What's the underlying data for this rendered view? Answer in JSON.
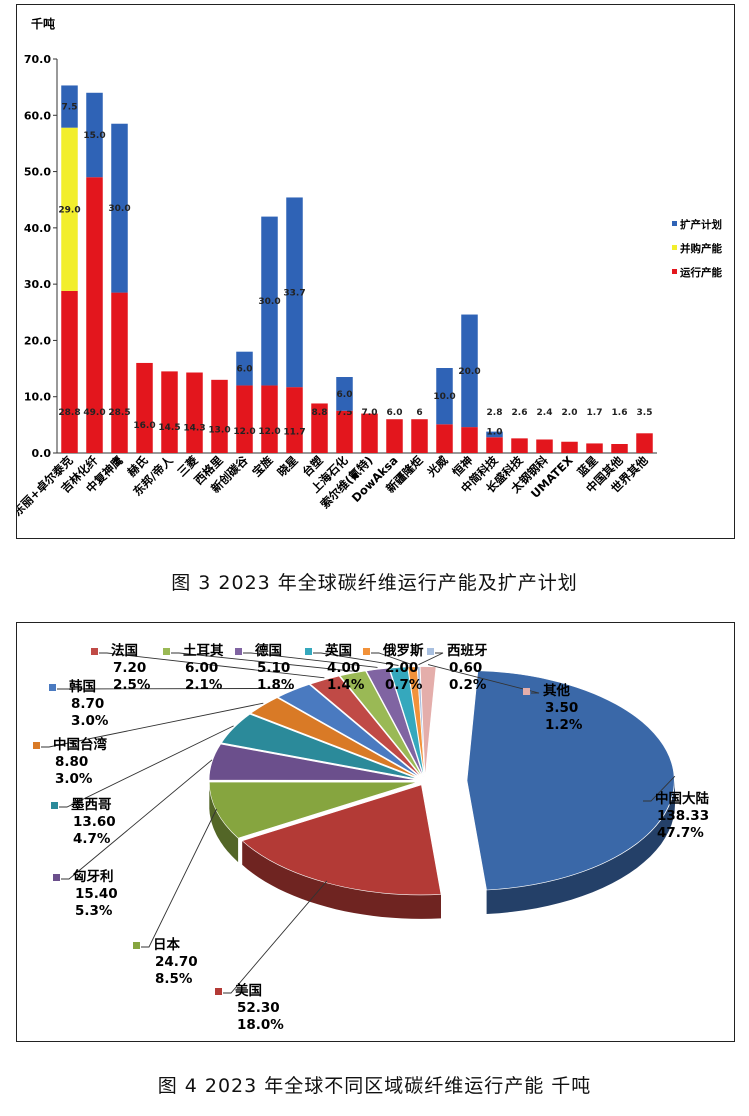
{
  "captions": {
    "fig3": "图 3  2023 年全球碳纤维运行产能及扩产计划",
    "fig4": "图 4  2023 年全球不同区域碳纤维运行产能  千吨"
  },
  "colors": {
    "operating": "#e3161d",
    "acquired": "#f2ee2c",
    "expansion": "#2f63b6"
  },
  "chart_data": [
    {
      "type": "bar",
      "stacked": true,
      "unit": "千吨",
      "ylim": [
        0,
        70
      ],
      "yticks": [
        "0.0",
        "10.0",
        "20.0",
        "30.0",
        "40.0",
        "50.0",
        "60.0",
        "70.0"
      ],
      "grid": false,
      "legend_position": "right",
      "categories": [
        "东丽+卓尔泰克",
        "吉林化纤",
        "中复神鹰",
        "赫氏",
        "东邦/帝人",
        "三菱",
        "西格里",
        "新创碳谷",
        "宝旌",
        "晓星",
        "台塑",
        "上海石化",
        "索尔维(氰特)",
        "DowAksa",
        "新疆隆炬",
        "光威",
        "恒神",
        "中简科技",
        "长盛科技",
        "太钢钢科",
        "UMATEX",
        "蓝星",
        "中国其他",
        "世界其他"
      ],
      "series": [
        {
          "name": "运行产能",
          "color": "#e3161d",
          "values": [
            28.8,
            49.0,
            28.5,
            16.0,
            14.5,
            14.3,
            13.0,
            12.0,
            12.0,
            11.7,
            8.8,
            7.5,
            7.0,
            6.0,
            6,
            5.1,
            4.6,
            2.8,
            2.6,
            2.4,
            2.0,
            1.7,
            1.6,
            3.5
          ],
          "labels": [
            "28.8",
            "49.0",
            "28.5",
            "16.0",
            "14.5",
            "14.3",
            "13.0",
            "12.0",
            "12.0",
            "11.7",
            "8.8",
            "7.5",
            "7.0",
            "6.0",
            "6",
            "5.1",
            "4.6",
            "2.8",
            "2.6",
            "2.4",
            "2.0",
            "1.7",
            "1.6",
            "3.5"
          ]
        },
        {
          "name": "并购产能",
          "color": "#f2ee2c",
          "values": [
            29.0,
            0,
            0,
            0,
            0,
            0,
            0,
            0,
            0,
            0,
            0,
            0,
            0,
            0,
            0,
            0,
            0,
            0,
            0,
            0,
            0,
            0,
            0,
            0
          ],
          "labels": [
            "29.0",
            "",
            "",
            "",
            "",
            "",
            "",
            "",
            "",
            "",
            "",
            "",
            "",
            "",
            "",
            "",
            "",
            "",
            "",
            "",
            "",
            "",
            "",
            ""
          ]
        },
        {
          "name": "扩产计划",
          "color": "#2f63b6",
          "values": [
            7.5,
            15.0,
            30.0,
            0,
            0,
            0,
            0,
            6.0,
            30.0,
            33.7,
            0,
            6.0,
            0,
            0,
            0,
            10.0,
            20.0,
            1.0,
            0,
            0,
            0,
            0,
            0,
            0
          ],
          "labels": [
            "7.5",
            "15.0",
            "30.0",
            "",
            "",
            "",
            "",
            "6.0",
            "30.0",
            "33.7",
            "",
            "6.0",
            "",
            "",
            "",
            "10.0",
            "20.0",
            "1.0",
            "",
            "",
            "",
            "",
            "",
            ""
          ]
        }
      ]
    },
    {
      "type": "pie",
      "three_d": true,
      "slices": [
        {
          "label": "中国大陆",
          "value": 138.33,
          "value_text": "138.33",
          "pct": "47.7%",
          "color": "#3a68a8"
        },
        {
          "label": "美国",
          "value": 52.3,
          "value_text": "52.30",
          "pct": "18.0%",
          "color": "#b33a36"
        },
        {
          "label": "日本",
          "value": 24.7,
          "value_text": "24.70",
          "pct": "8.5%",
          "color": "#86a53f"
        },
        {
          "label": "匈牙利",
          "value": 15.4,
          "value_text": "15.40",
          "pct": "5.3%",
          "color": "#6b4f8c"
        },
        {
          "label": "墨西哥",
          "value": 13.6,
          "value_text": "13.60",
          "pct": "4.7%",
          "color": "#2b8a9a"
        },
        {
          "label": "中国台湾",
          "value": 8.8,
          "value_text": "8.80",
          "pct": "3.0%",
          "color": "#d97a26"
        },
        {
          "label": "韩国",
          "value": 8.7,
          "value_text": "8.70",
          "pct": "3.0%",
          "color": "#4a7ac0"
        },
        {
          "label": "法国",
          "value": 7.2,
          "value_text": "7.20",
          "pct": "2.5%",
          "color": "#c04a46"
        },
        {
          "label": "土耳其",
          "value": 6.0,
          "value_text": "6.00",
          "pct": "2.1%",
          "color": "#9ab955"
        },
        {
          "label": "德国",
          "value": 5.1,
          "value_text": "5.10",
          "pct": "1.8%",
          "color": "#8064a2"
        },
        {
          "label": "英国",
          "value": 4.0,
          "value_text": "4.00",
          "pct": "1.4%",
          "color": "#35a8bd"
        },
        {
          "label": "俄罗斯",
          "value": 2.0,
          "value_text": "2.00",
          "pct": "0.7%",
          "color": "#f2923a"
        },
        {
          "label": "西班牙",
          "value": 0.6,
          "value_text": "0.60",
          "pct": "0.2%",
          "color": "#a8bfdf"
        },
        {
          "label": "其他",
          "value": 3.5,
          "value_text": "3.50",
          "pct": "1.2%",
          "color": "#e4aeab"
        }
      ]
    }
  ]
}
